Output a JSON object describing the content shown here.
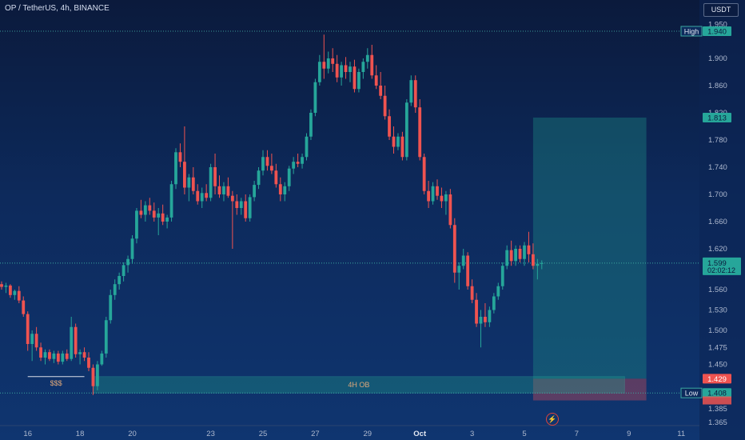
{
  "header": {
    "symbol_title": "OP / TetherUS, 4h, BINANCE",
    "currency_button": "USDT"
  },
  "chart_data": {
    "type": "candlestick",
    "ylim": [
      1.36,
      1.96
    ],
    "y_ticks": [
      {
        "value": 1.95,
        "label": "1.950"
      },
      {
        "value": 1.9,
        "label": "1.900"
      },
      {
        "value": 1.86,
        "label": "1.860"
      },
      {
        "value": 1.82,
        "label": "1.820"
      },
      {
        "value": 1.78,
        "label": "1.780"
      },
      {
        "value": 1.74,
        "label": "1.740"
      },
      {
        "value": 1.7,
        "label": "1.700"
      },
      {
        "value": 1.66,
        "label": "1.660"
      },
      {
        "value": 1.62,
        "label": "1.620"
      },
      {
        "value": 1.56,
        "label": "1.560"
      },
      {
        "value": 1.53,
        "label": "1.530"
      },
      {
        "value": 1.5,
        "label": "1.500"
      },
      {
        "value": 1.475,
        "label": "1.475"
      },
      {
        "value": 1.45,
        "label": "1.450"
      },
      {
        "value": 1.385,
        "label": "1.385"
      },
      {
        "value": 1.365,
        "label": "1.365"
      }
    ],
    "x_ticks": [
      {
        "index": 6,
        "label": "16"
      },
      {
        "index": 18,
        "label": "18"
      },
      {
        "index": 30,
        "label": "20"
      },
      {
        "index": 48,
        "label": "23"
      },
      {
        "index": 60,
        "label": "25"
      },
      {
        "index": 72,
        "label": "27"
      },
      {
        "index": 84,
        "label": "29"
      },
      {
        "index": 96,
        "label": "Oct"
      },
      {
        "index": 108,
        "label": "3"
      },
      {
        "index": 120,
        "label": "5"
      },
      {
        "index": 132,
        "label": "7"
      },
      {
        "index": 144,
        "label": "9"
      },
      {
        "index": 156,
        "label": "11"
      }
    ],
    "candles": [
      [
        1.568,
        1.572,
        1.56,
        1.564
      ],
      [
        1.564,
        1.57,
        1.555,
        1.566
      ],
      [
        1.566,
        1.568,
        1.548,
        1.552
      ],
      [
        1.552,
        1.56,
        1.545,
        1.558
      ],
      [
        1.558,
        1.565,
        1.54,
        1.544
      ],
      [
        1.544,
        1.55,
        1.52,
        1.524
      ],
      [
        1.524,
        1.528,
        1.47,
        1.48
      ],
      [
        1.48,
        1.5,
        1.455,
        1.495
      ],
      [
        1.495,
        1.505,
        1.47,
        1.475
      ],
      [
        1.475,
        1.482,
        1.455,
        1.46
      ],
      [
        1.46,
        1.472,
        1.45,
        1.468
      ],
      [
        1.468,
        1.472,
        1.455,
        1.458
      ],
      [
        1.458,
        1.47,
        1.452,
        1.466
      ],
      [
        1.466,
        1.47,
        1.45,
        1.454
      ],
      [
        1.454,
        1.47,
        1.45,
        1.466
      ],
      [
        1.466,
        1.472,
        1.455,
        1.458
      ],
      [
        1.458,
        1.52,
        1.455,
        1.505
      ],
      [
        1.505,
        1.51,
        1.46,
        1.465
      ],
      [
        1.465,
        1.472,
        1.45,
        1.468
      ],
      [
        1.468,
        1.475,
        1.455,
        1.46
      ],
      [
        1.46,
        1.468,
        1.44,
        1.445
      ],
      [
        1.445,
        1.45,
        1.405,
        1.418
      ],
      [
        1.418,
        1.455,
        1.412,
        1.45
      ],
      [
        1.45,
        1.47,
        1.448,
        1.466
      ],
      [
        1.466,
        1.52,
        1.46,
        1.515
      ],
      [
        1.515,
        1.56,
        1.51,
        1.552
      ],
      [
        1.552,
        1.575,
        1.545,
        1.568
      ],
      [
        1.568,
        1.585,
        1.56,
        1.58
      ],
      [
        1.58,
        1.6,
        1.572,
        1.596
      ],
      [
        1.596,
        1.61,
        1.585,
        1.605
      ],
      [
        1.605,
        1.64,
        1.598,
        1.635
      ],
      [
        1.635,
        1.68,
        1.628,
        1.676
      ],
      [
        1.676,
        1.692,
        1.665,
        1.67
      ],
      [
        1.67,
        1.69,
        1.66,
        1.684
      ],
      [
        1.684,
        1.695,
        1.67,
        1.676
      ],
      [
        1.676,
        1.688,
        1.66,
        1.666
      ],
      [
        1.666,
        1.68,
        1.64,
        1.672
      ],
      [
        1.672,
        1.685,
        1.655,
        1.66
      ],
      [
        1.66,
        1.67,
        1.65,
        1.666
      ],
      [
        1.666,
        1.72,
        1.66,
        1.715
      ],
      [
        1.715,
        1.768,
        1.708,
        1.762
      ],
      [
        1.762,
        1.775,
        1.74,
        1.748
      ],
      [
        1.748,
        1.8,
        1.7,
        1.71
      ],
      [
        1.71,
        1.73,
        1.69,
        1.725
      ],
      [
        1.725,
        1.74,
        1.7,
        1.705
      ],
      [
        1.705,
        1.715,
        1.685,
        1.69
      ],
      [
        1.69,
        1.71,
        1.68,
        1.702
      ],
      [
        1.702,
        1.715,
        1.69,
        1.695
      ],
      [
        1.695,
        1.745,
        1.69,
        1.74
      ],
      [
        1.74,
        1.76,
        1.7,
        1.712
      ],
      [
        1.712,
        1.728,
        1.695,
        1.7
      ],
      [
        1.7,
        1.718,
        1.69,
        1.712
      ],
      [
        1.712,
        1.725,
        1.695,
        1.698
      ],
      [
        1.698,
        1.705,
        1.62,
        1.69
      ],
      [
        1.69,
        1.7,
        1.67,
        1.68
      ],
      [
        1.68,
        1.695,
        1.67,
        1.69
      ],
      [
        1.69,
        1.7,
        1.66,
        1.665
      ],
      [
        1.665,
        1.7,
        1.66,
        1.696
      ],
      [
        1.696,
        1.72,
        1.69,
        1.714
      ],
      [
        1.714,
        1.74,
        1.708,
        1.735
      ],
      [
        1.735,
        1.765,
        1.728,
        1.755
      ],
      [
        1.755,
        1.765,
        1.735,
        1.742
      ],
      [
        1.742,
        1.76,
        1.73,
        1.735
      ],
      [
        1.735,
        1.745,
        1.71,
        1.715
      ],
      [
        1.715,
        1.725,
        1.69,
        1.7
      ],
      [
        1.7,
        1.718,
        1.69,
        1.712
      ],
      [
        1.712,
        1.742,
        1.705,
        1.738
      ],
      [
        1.738,
        1.755,
        1.73,
        1.748
      ],
      [
        1.748,
        1.76,
        1.74,
        1.745
      ],
      [
        1.745,
        1.76,
        1.738,
        1.755
      ],
      [
        1.755,
        1.79,
        1.75,
        1.785
      ],
      [
        1.785,
        1.825,
        1.78,
        1.82
      ],
      [
        1.82,
        1.87,
        1.815,
        1.865
      ],
      [
        1.865,
        1.905,
        1.86,
        1.895
      ],
      [
        1.895,
        1.935,
        1.87,
        1.885
      ],
      [
        1.885,
        1.91,
        1.878,
        1.9
      ],
      [
        1.9,
        1.915,
        1.88,
        1.892
      ],
      [
        1.892,
        1.905,
        1.865,
        1.872
      ],
      [
        1.872,
        1.895,
        1.86,
        1.89
      ],
      [
        1.89,
        1.902,
        1.87,
        1.88
      ],
      [
        1.88,
        1.895,
        1.865,
        1.888
      ],
      [
        1.888,
        1.898,
        1.85,
        1.855
      ],
      [
        1.855,
        1.885,
        1.85,
        1.88
      ],
      [
        1.88,
        1.9,
        1.87,
        1.895
      ],
      [
        1.895,
        1.915,
        1.885,
        1.905
      ],
      [
        1.905,
        1.92,
        1.87,
        1.875
      ],
      [
        1.875,
        1.89,
        1.855,
        1.86
      ],
      [
        1.86,
        1.88,
        1.84,
        1.845
      ],
      [
        1.845,
        1.86,
        1.81,
        1.815
      ],
      [
        1.815,
        1.825,
        1.78,
        1.785
      ],
      [
        1.785,
        1.8,
        1.76,
        1.77
      ],
      [
        1.77,
        1.79,
        1.765,
        1.785
      ],
      [
        1.785,
        1.792,
        1.75,
        1.755
      ],
      [
        1.755,
        1.84,
        1.75,
        1.835
      ],
      [
        1.835,
        1.875,
        1.83,
        1.868
      ],
      [
        1.868,
        1.875,
        1.82,
        1.828
      ],
      [
        1.828,
        1.84,
        1.75,
        1.755
      ],
      [
        1.755,
        1.76,
        1.7,
        1.705
      ],
      [
        1.705,
        1.72,
        1.68,
        1.69
      ],
      [
        1.69,
        1.718,
        1.685,
        1.712
      ],
      [
        1.712,
        1.722,
        1.692,
        1.698
      ],
      [
        1.698,
        1.71,
        1.68,
        1.69
      ],
      [
        1.69,
        1.705,
        1.67,
        1.7
      ],
      [
        1.7,
        1.708,
        1.65,
        1.655
      ],
      [
        1.655,
        1.665,
        1.57,
        1.585
      ],
      [
        1.585,
        1.6,
        1.56,
        1.595
      ],
      [
        1.595,
        1.62,
        1.59,
        1.61
      ],
      [
        1.61,
        1.615,
        1.56,
        1.565
      ],
      [
        1.565,
        1.575,
        1.54,
        1.545
      ],
      [
        1.545,
        1.555,
        1.505,
        1.51
      ],
      [
        1.51,
        1.53,
        1.475,
        1.52
      ],
      [
        1.52,
        1.54,
        1.505,
        1.512
      ],
      [
        1.512,
        1.535,
        1.505,
        1.53
      ],
      [
        1.53,
        1.555,
        1.525,
        1.55
      ],
      [
        1.55,
        1.57,
        1.545,
        1.565
      ],
      [
        1.565,
        1.6,
        1.56,
        1.595
      ],
      [
        1.595,
        1.625,
        1.59,
        1.618
      ],
      [
        1.618,
        1.632,
        1.595,
        1.602
      ],
      [
        1.602,
        1.625,
        1.595,
        1.62
      ],
      [
        1.62,
        1.625,
        1.6,
        1.605
      ],
      [
        1.605,
        1.63,
        1.595,
        1.625
      ],
      [
        1.625,
        1.645,
        1.6,
        1.612
      ],
      [
        1.612,
        1.628,
        1.59,
        1.595
      ],
      [
        1.595,
        1.605,
        1.575,
        1.598
      ],
      [
        1.598,
        1.603,
        1.59,
        1.599
      ]
    ],
    "overlays": {
      "high": {
        "value": 1.94,
        "tag": "High",
        "label": "1.940"
      },
      "target": {
        "value": 1.813,
        "label": "1.813"
      },
      "current": {
        "value": 1.599,
        "label": "1.599",
        "countdown": "02:02:12"
      },
      "entry": {
        "value": 1.429,
        "label": "1.429"
      },
      "low": {
        "value": 1.408,
        "tag": "Low",
        "label": "1.408"
      },
      "stop": {
        "value": 1.397
      },
      "order_block": {
        "top": 1.432,
        "bottom": 1.408,
        "label": "4H OB",
        "start_index": 21,
        "end_index": 143
      },
      "liquidity": {
        "value": 1.432,
        "label": "$$$",
        "start_index": 6,
        "end_index": 19
      },
      "position": {
        "start_index": 122,
        "end_index": 148
      }
    },
    "colors": {
      "up": "#26a69a",
      "down": "#ef5350",
      "grid": "#2a3f66",
      "text": "#aeb9cf"
    }
  }
}
